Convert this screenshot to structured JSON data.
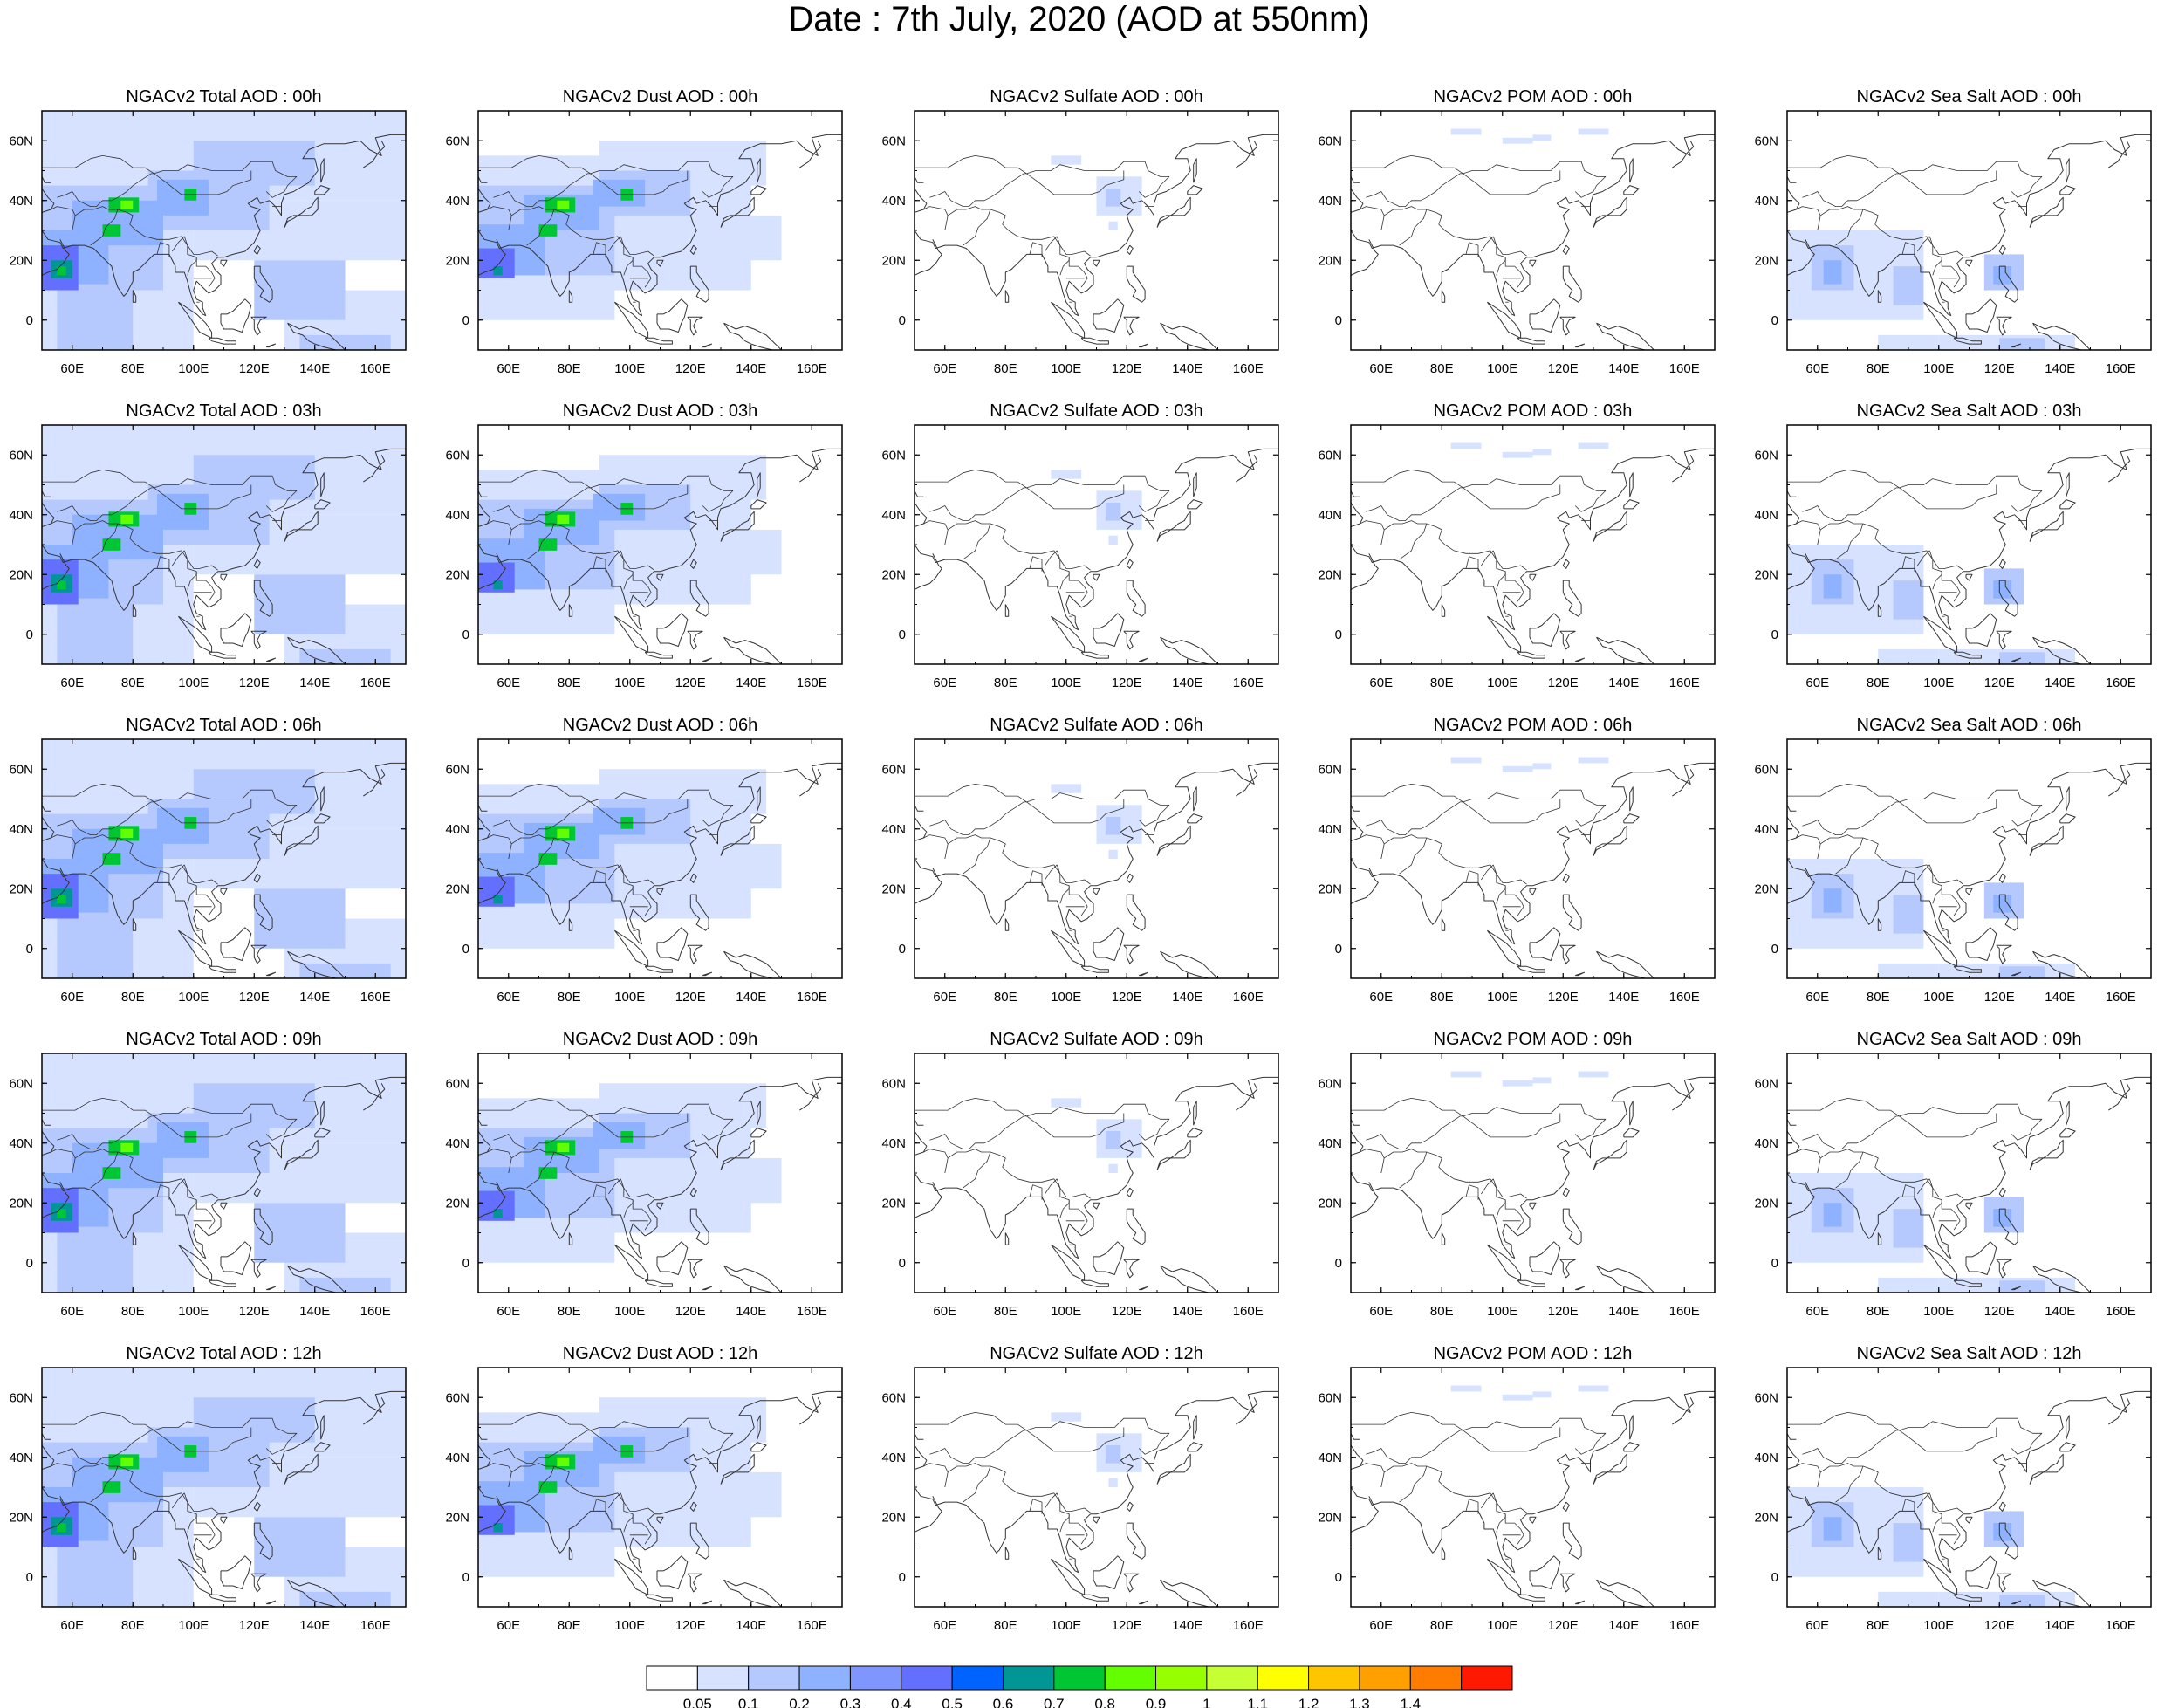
{
  "title": "Date : 7th July, 2020 (AOD at 550nm)",
  "x_tick_labels": [
    "60E",
    "80E",
    "100E",
    "120E",
    "140E",
    "160E"
  ],
  "y_tick_labels": [
    "60N",
    "40N",
    "20N",
    "0"
  ],
  "colors": {
    "white": "#ffffff",
    "very_light_blue": "#d6e2ff",
    "light_blue": "#b5c9ff",
    "medium_light_blue": "#8eb2ff",
    "medium_blue": "#7f96ff",
    "blue": "#6370ff",
    "bright_blue": "#0063ff",
    "teal": "#009696",
    "green": "#00c633",
    "lime": "#63ff00",
    "light_lime": "#96ff00",
    "yellow_green": "#c6ff33",
    "yellow": "#ffff00",
    "gold": "#ffc600",
    "orange_yellow": "#ffa000",
    "orange": "#ff7c00",
    "red": "#ff1900"
  },
  "panels": [
    [
      "NGACv2 Total AOD : 00h",
      "NGACv2 Dust AOD : 00h",
      "NGACv2 Sulfate AOD : 00h",
      "NGACv2 POM AOD : 00h",
      "NGACv2 Sea Salt AOD : 00h"
    ],
    [
      "NGACv2 Total AOD : 03h",
      "NGACv2 Dust AOD : 03h",
      "NGACv2 Sulfate AOD : 03h",
      "NGACv2 POM AOD : 03h",
      "NGACv2 Sea Salt AOD : 03h"
    ],
    [
      "NGACv2 Total AOD : 06h",
      "NGACv2 Dust AOD : 06h",
      "NGACv2 Sulfate AOD : 06h",
      "NGACv2 POM AOD : 06h",
      "NGACv2 Sea Salt AOD : 06h"
    ],
    [
      "NGACv2 Total AOD : 09h",
      "NGACv2 Dust AOD : 09h",
      "NGACv2 Sulfate AOD : 09h",
      "NGACv2 POM AOD : 09h",
      "NGACv2 Sea Salt  AOD : 09h"
    ],
    [
      "NGACv2 Total AOD  : 12h",
      "NGACv2 Dust AOD : 12h",
      "NGACv2 Sulfate AOD : 12h",
      "NGACv2 POM  AOD : 12h",
      "NGACv2 Sea Salt  AOD : 12h"
    ]
  ],
  "colorbar": {
    "labels": [
      "0.05",
      "0.1",
      "0.2",
      "0.3",
      "0.4",
      "0.5",
      "0.6",
      "0.7",
      "0.8",
      "0.9",
      "1",
      "1.1",
      "1.2",
      "1.3",
      "1.4"
    ],
    "colors": [
      "#ffffff",
      "#d6e2ff",
      "#b5c9ff",
      "#8eb2ff",
      "#7f96ff",
      "#6370ff",
      "#0063ff",
      "#009696",
      "#00c633",
      "#63ff00",
      "#96ff00",
      "#c6ff33",
      "#ffff00",
      "#ffc600",
      "#ffa000",
      "#ff7c00",
      "#ff1900"
    ]
  }
}
